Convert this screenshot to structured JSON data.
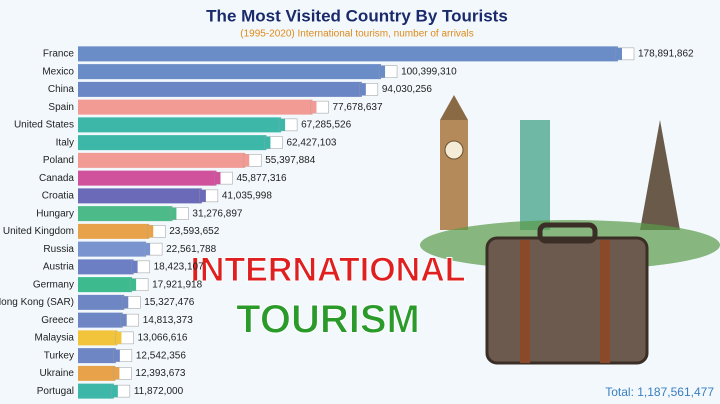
{
  "chart_data": {
    "type": "bar",
    "orientation": "horizontal",
    "title": "The Most Visited Country By Tourists",
    "subtitle": "(1995-2020) International tourism, number of arrivals",
    "categories": [
      "France",
      "Mexico",
      "China",
      "Spain",
      "United States",
      "Italy",
      "Poland",
      "Canada",
      "Croatia",
      "Hungary",
      "United Kingdom",
      "Russia",
      "Austria",
      "Germany",
      "Hong Kong (SAR)",
      "Greece",
      "Malaysia",
      "Turkey",
      "Ukraine",
      "Portugal"
    ],
    "values": [
      178891862,
      100399310,
      94030256,
      77678637,
      67285526,
      62427103,
      55397884,
      45877316,
      41035998,
      31276897,
      23593652,
      22561788,
      18423107,
      17921918,
      15327476,
      14813373,
      13066616,
      12542356,
      12393673,
      11872000
    ],
    "value_labels": [
      "178,891,862",
      "100,399,310",
      "94,030,256",
      "77,678,637",
      "67,285,526",
      "62,427,103",
      "55,397,884",
      "45,877,316",
      "41,035,998",
      "31,276,897",
      "23,593,652",
      "22,561,788",
      "18,423,107",
      "17,921,918",
      "15,327,476",
      "14,813,373",
      "13,066,616",
      "12,542,356",
      "12,393,673",
      "11,872,000"
    ],
    "colors": [
      "#6a8cc7",
      "#6a8cc7",
      "#6b86c4",
      "#f29a94",
      "#3db8a8",
      "#3db8a8",
      "#f29a94",
      "#d0529d",
      "#6a6ab8",
      "#4dba8a",
      "#e8a34a",
      "#7a94d0",
      "#6c7fc4",
      "#3dbb8f",
      "#6f86c4",
      "#6f86c4",
      "#f2c43c",
      "#6f86c4",
      "#e8a34a",
      "#3db8a8"
    ],
    "total_text": "Total: 1,187,561,477",
    "annotations": [
      "INTERNATIONAL",
      "TOURISM"
    ]
  }
}
